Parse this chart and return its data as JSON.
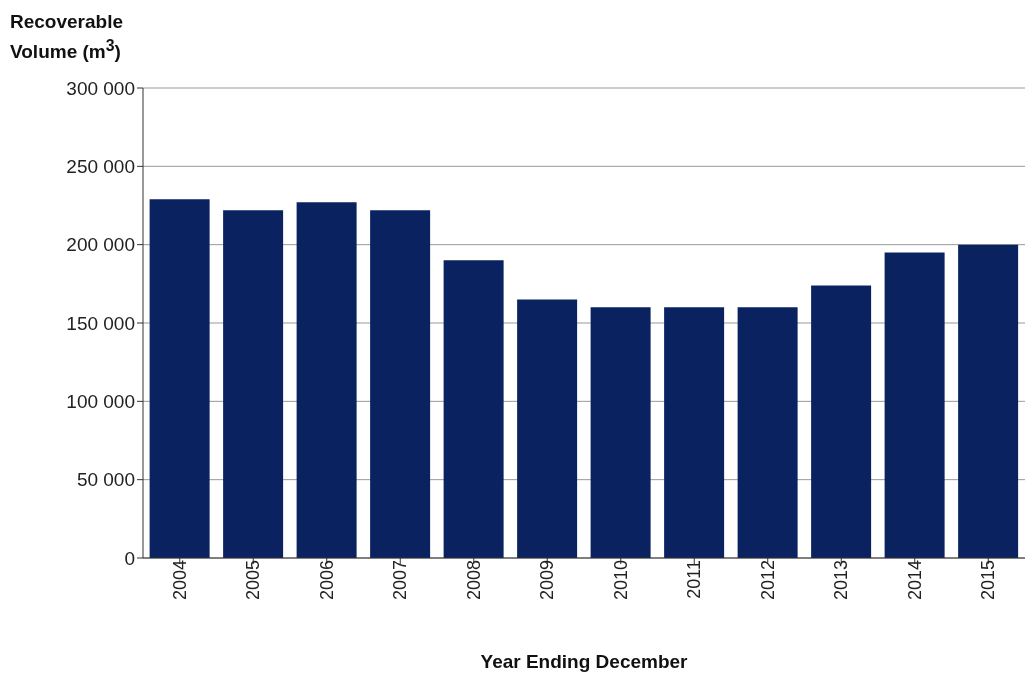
{
  "chart_data": {
    "type": "bar",
    "ylabel": "Recoverable Volume (m$^{3}$)",
    "xlabel": "Year Ending December",
    "categories": [
      "2004",
      "2005",
      "2006",
      "2007",
      "2008",
      "2009",
      "2010",
      "2011",
      "2012",
      "2013",
      "2014",
      "2015"
    ],
    "values": [
      229000,
      222000,
      227000,
      222000,
      190000,
      165000,
      160000,
      160000,
      160000,
      174000,
      195000,
      200000
    ],
    "color": "#0a2260",
    "ylim": [
      0,
      300000
    ],
    "yticks": [
      {
        "value": 0,
        "label": "0"
      },
      {
        "value": 50000,
        "label": "50 000"
      },
      {
        "value": 100000,
        "label": "100 000"
      },
      {
        "value": 150000,
        "label": "150 000"
      },
      {
        "value": 200000,
        "label": "200 000"
      },
      {
        "value": 250000,
        "label": "250 000"
      },
      {
        "value": 300000,
        "label": "300 000"
      }
    ],
    "grid": "y"
  }
}
